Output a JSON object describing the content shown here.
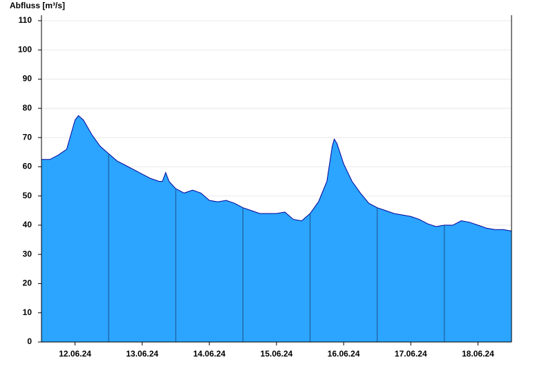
{
  "chart_data": {
    "type": "area",
    "y_label": "Abfluss [m³/s]",
    "x": [
      0,
      0.125,
      0.25,
      0.375,
      0.5,
      0.55,
      0.625,
      0.75,
      0.875,
      1.0,
      1.125,
      1.25,
      1.375,
      1.5,
      1.625,
      1.75,
      1.8,
      1.85,
      1.9,
      2.0,
      2.125,
      2.25,
      2.375,
      2.5,
      2.625,
      2.75,
      2.875,
      3.0,
      3.125,
      3.25,
      3.375,
      3.5,
      3.625,
      3.75,
      3.875,
      4.0,
      4.125,
      4.25,
      4.33,
      4.36,
      4.4,
      4.5,
      4.625,
      4.75,
      4.875,
      5.0,
      5.125,
      5.25,
      5.375,
      5.5,
      5.625,
      5.75,
      5.875,
      6.0,
      6.125,
      6.25,
      6.375,
      6.5,
      6.625,
      6.75,
      6.875,
      7.0
    ],
    "values": [
      62.5,
      62.5,
      64,
      66,
      76,
      77.5,
      76,
      71,
      67,
      64.5,
      62,
      60.5,
      59,
      57.5,
      56,
      55,
      55,
      58,
      55,
      52.5,
      51,
      52,
      51,
      48.5,
      48,
      48.5,
      47.5,
      46,
      45,
      44,
      44,
      44,
      44.5,
      42,
      41.5,
      44,
      48,
      55,
      67,
      69.5,
      68,
      61,
      55,
      51,
      47.5,
      46,
      45,
      44,
      43.5,
      43,
      42,
      40.5,
      39.5,
      40,
      40,
      41.5,
      41,
      40,
      39,
      38.5,
      38.5,
      38
    ],
    "fill_color": "#2ba5ff",
    "line_color": "#000099",
    "xlim": [
      0,
      7
    ],
    "xticks": [
      {
        "value": 0.5,
        "label": "12.06.24"
      },
      {
        "value": 1.5,
        "label": "13.06.24"
      },
      {
        "value": 2.5,
        "label": "14.06.24"
      },
      {
        "value": 3.5,
        "label": "15.06.24"
      },
      {
        "value": 4.5,
        "label": "16.06.24"
      },
      {
        "value": 5.5,
        "label": "17.06.24"
      },
      {
        "value": 6.5,
        "label": "18.06.24"
      }
    ],
    "day_lines": [
      1,
      2,
      3,
      4,
      5,
      6
    ],
    "ylim": [
      0,
      110
    ],
    "yticks": [
      0,
      10,
      20,
      30,
      40,
      50,
      60,
      70,
      80,
      90,
      100,
      110
    ],
    "grid": true
  }
}
